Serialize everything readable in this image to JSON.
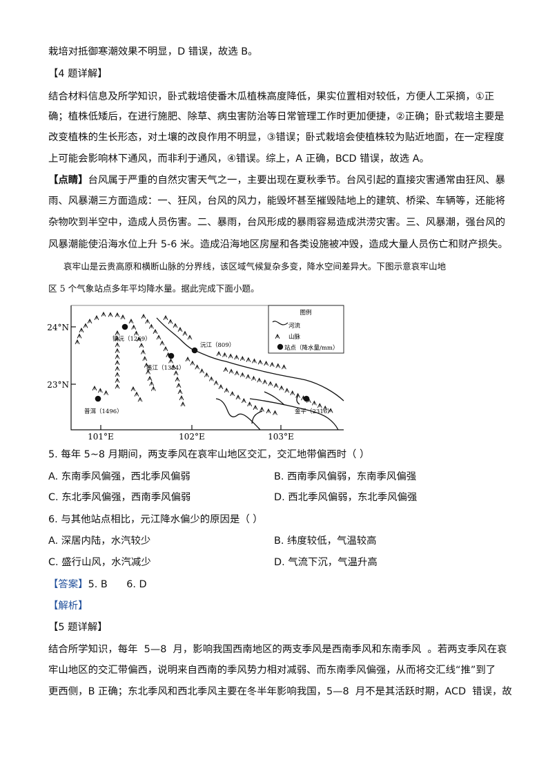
{
  "prev_tail": "栽培对抵御寒潮效果不明显，D 错误，故选 B。",
  "q4": {
    "heading": "【4 题详解】",
    "lines": [
      "结合材料信息及所学知识，卧式栽培使番木瓜植株高度降低，果实位置相对较低，方便人工采摘，①正",
      "确；植株低矮后，在进行施肥、除草、病虫害防治等日常管理工作时更加便捷，②正确；卧式栽培主要是",
      "改变植株的生长形态，对土壤的改良作用不明显，③错误；卧式栽培会使植株较为贴近地面，在一定程度",
      "上可能会影响林下通风，而非利于通风，④错误。综上，A 正确，BCD 错误，故选 A。"
    ]
  },
  "dianjing": {
    "label": "【点睛】",
    "lines": [
      "台风属于严重的自然灾害天气之一，主要出现在夏秋季节。台风引起的直接灾害通常由狂风、暴",
      "雨、风暴潮三方面造成：一、狂风，台风的风力，能毁坏甚至摧毁陆地上的建筑、桥梁、车辆等，还能将",
      "杂物吹到半空中，造成人员伤害。二、暴雨，台风形成的暴雨容易造成洪涝灾害。三、风暴潮，强台风的",
      "风暴潮能使沿海水位上升 5-6 米。造成沿海地区房屋和各类设施被冲毁，造成大量人员伤亡和财产损失。"
    ]
  },
  "intro": {
    "lines": [
      "哀牢山是云贵高原和横断山脉的分界线，该区域气候复杂多变，降水空间差异大。下图示意哀牢山地",
      "区 5 个气象站点多年平均降水量。据此完成下面小题。"
    ]
  },
  "map": {
    "lat_labels": [
      "24°N",
      "23°N"
    ],
    "lon_labels": [
      "101°E",
      "102°E",
      "103°E"
    ],
    "legend": {
      "title": "图例",
      "river": "河流",
      "mountain": "山脉",
      "station": "站点（降水量/mm）"
    },
    "stations": [
      {
        "name": "镇沅",
        "precip": "1269"
      },
      {
        "name": "沅江",
        "precip": "809"
      },
      {
        "name": "墨江",
        "precip": "1324"
      },
      {
        "name": "普洱",
        "precip": "1496"
      },
      {
        "name": "金平",
        "precip": "2316"
      }
    ],
    "colors": {
      "ink": "#111111"
    }
  },
  "q5": {
    "stem": "5.  每年 5~8 月期间，两支季风在哀牢山地区交汇，交汇地带偏西时（    ）",
    "options": [
      "A.  东南季风偏强，西北季风偏弱",
      "B.  西南季风偏弱，东南季风偏强",
      "C.  东北季风偏强，西南季风偏弱",
      "D.  西北季风偏弱，东北季风偏强"
    ]
  },
  "q6": {
    "stem": "6.  与其他站点相比，元江降水偏少的原因是（    ）",
    "options": [
      "A.  深居内陆，水汽较少",
      "B.  纬度较低，气温较高",
      "C.  盛行山风，水汽减少",
      "D.  气流下沉，气温升高"
    ]
  },
  "answer": {
    "label": "【答案】",
    "text": "5. B      6. D"
  },
  "analysis_label": "【解析】",
  "q5_detail": {
    "heading": "【5 题详解】",
    "lines": [
      "结合所学知识，每年  5—8  月，影响我国西南地区的两支季风是西南季风和东南季风  。若两支季风在哀",
      "牢山地区的交汇带偏西，说明来自西南的季风势力相对减弱、而东南季风偏强，从而将交汇线“推”到了",
      "更西侧，B 正确；东北季风和西北季风主要在冬半年影响我国，5—8  月不是其活跃时期，ACD  错误，故"
    ]
  }
}
